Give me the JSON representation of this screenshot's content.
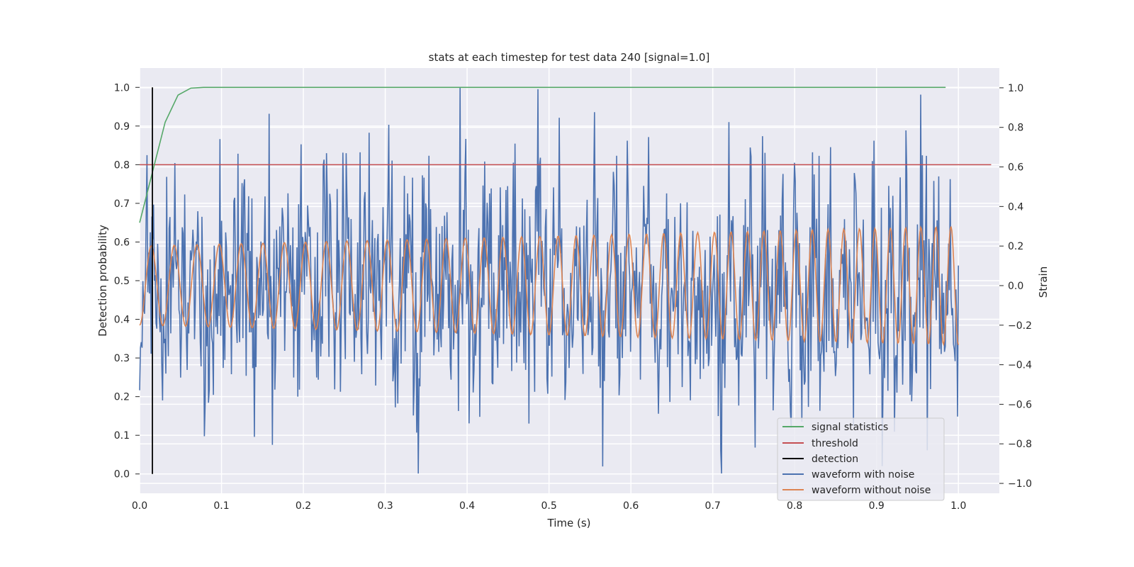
{
  "chart_data": {
    "type": "line",
    "title": "stats at each timestep for test data 240 [signal=1.0]",
    "xlabel": "Time (s)",
    "ylabel_left": "Detection probability",
    "ylabel_right": "Strain",
    "xlim": [
      0.0,
      1.05
    ],
    "ylim_left": [
      -0.05,
      1.05
    ],
    "ylim_right": [
      -1.05,
      1.1
    ],
    "x_ticks": [
      "0.0",
      "0.1",
      "0.2",
      "0.3",
      "0.4",
      "0.5",
      "0.6",
      "0.7",
      "0.8",
      "0.9",
      "1.0"
    ],
    "y_left_ticks": [
      "0.0",
      "0.1",
      "0.2",
      "0.3",
      "0.4",
      "0.5",
      "0.6",
      "0.7",
      "0.8",
      "0.9",
      "1.0"
    ],
    "y_right_ticks": [
      "−1.0",
      "−0.8",
      "−0.6",
      "−0.4",
      "−0.2",
      "0.0",
      "0.2",
      "0.4",
      "0.6",
      "0.8",
      "1.0"
    ],
    "grid": true,
    "legend_position": "lower-right",
    "series": [
      {
        "name": "signal statistics",
        "color": "#55a868",
        "axis": "left",
        "x": [
          0.0,
          0.0156,
          0.0312,
          0.0469,
          0.0625,
          0.0781,
          0.1,
          0.2,
          0.3,
          0.4,
          0.5,
          0.6,
          0.7,
          0.8,
          0.9,
          0.9844
        ],
        "y": [
          0.65,
          0.78,
          0.91,
          0.98,
          0.998,
          1.0,
          1.0,
          1.0,
          1.0,
          1.0,
          1.0,
          1.0,
          1.0,
          1.0,
          1.0,
          1.0
        ]
      },
      {
        "name": "threshold",
        "color": "#c44e52",
        "axis": "left",
        "x": [
          0.0,
          1.04
        ],
        "y": [
          0.8,
          0.8
        ]
      },
      {
        "name": "detection",
        "color": "#000000",
        "axis": "left",
        "x": [
          0.0156,
          0.0156
        ],
        "y": [
          0.0,
          1.0
        ]
      },
      {
        "name": "waveform with noise",
        "color": "#4c72b0",
        "axis": "right",
        "note_model": "noisy strain, approx 1000 samples over 0 to 1 s, range about -0.95 to 1.0",
        "x_range": [
          0.0,
          1.0
        ],
        "samples": 1000,
        "amplitude_range": [
          -0.95,
          1.0
        ]
      },
      {
        "name": "waveform without noise",
        "color": "#dd8452",
        "axis": "right",
        "x_range": [
          0.0,
          1.0
        ],
        "samples": 1000,
        "start_freq_hz": 35,
        "end_freq_hz": 55,
        "start_amplitude": 0.2,
        "end_amplitude": 0.3
      }
    ]
  }
}
